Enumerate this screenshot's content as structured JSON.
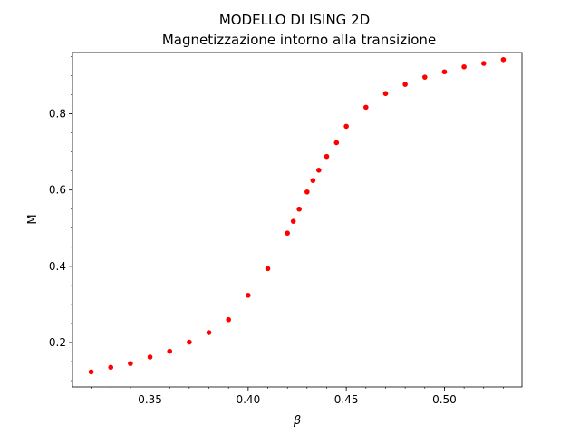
{
  "chart_data": {
    "type": "scatter",
    "title": "MODELLO DI ISING 2D",
    "subtitle": "Magnetizzazione intorno alla transizione",
    "xlabel": "β",
    "ylabel": "M",
    "xlim": [
      0.3105,
      0.5395
    ],
    "ylim": [
      0.0835,
      0.9605
    ],
    "x_ticks": [
      0.35,
      0.4,
      0.45,
      0.5
    ],
    "x_tick_labels": [
      "0.35",
      "0.40",
      "0.45",
      "0.50"
    ],
    "y_ticks": [
      0.2,
      0.4,
      0.6,
      0.8
    ],
    "y_tick_labels": [
      "0.2",
      "0.4",
      "0.6",
      "0.8"
    ],
    "x_minor_step": 0.01,
    "y_minor_step": 0.05,
    "grid": false,
    "marker_color": "#ff0000",
    "series": [
      {
        "x": [
          0.32,
          0.33,
          0.34,
          0.35,
          0.36,
          0.37,
          0.38,
          0.39,
          0.4,
          0.41,
          0.42,
          0.423,
          0.426,
          0.43,
          0.433,
          0.436,
          0.44,
          0.445,
          0.45,
          0.46,
          0.47,
          0.48,
          0.49,
          0.5,
          0.51,
          0.52,
          0.53
        ],
        "y": [
          0.123,
          0.135,
          0.145,
          0.162,
          0.177,
          0.201,
          0.226,
          0.26,
          0.324,
          0.394,
          0.487,
          0.518,
          0.55,
          0.595,
          0.625,
          0.652,
          0.688,
          0.724,
          0.767,
          0.817,
          0.853,
          0.877,
          0.896,
          0.91,
          0.923,
          0.932,
          0.942
        ]
      }
    ]
  }
}
